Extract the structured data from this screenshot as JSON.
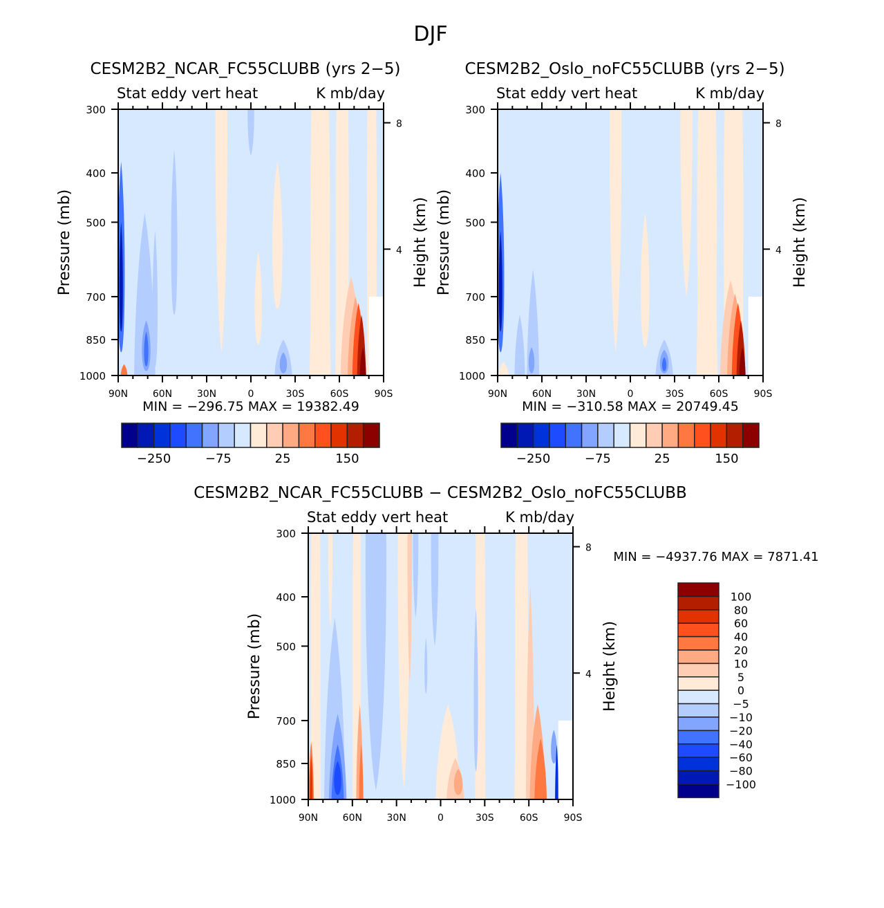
{
  "chart_data": {
    "type": "heatmap",
    "title": "DJF",
    "color_levels_abs": [
      -250,
      -200,
      -150,
      -125,
      -100,
      -75,
      -50,
      -25,
      0,
      25,
      50,
      75,
      100,
      125,
      150,
      175
    ],
    "colors": [
      "#00008c",
      "#0019b4",
      "#0032dc",
      "#1e4bff",
      "#4173ff",
      "#82a5ff",
      "#b4cdff",
      "#d7e9ff",
      "#ffebd7",
      "#ffcdb4",
      "#ffaa82",
      "#ff7841",
      "#ff501e",
      "#e13200",
      "#b41e00",
      "#8c0000"
    ],
    "panels": [
      {
        "id": "ncar",
        "title": "CESM2B2_NCAR_FC55CLUBB (yrs 2−5)",
        "left_string": "Stat eddy vert heat",
        "right_string": "K mb/day",
        "ylabel": "Pressure (mb)",
        "ylabel_right": "Height (km)",
        "min_max": "MIN = −296.75   MAX = 19382.49",
        "colorbar_labels": [
          {
            "after_box": 1,
            "text": "−250"
          },
          {
            "after_box": 5,
            "text": "−75"
          },
          {
            "after_box": 9,
            "text": "25"
          },
          {
            "after_box": 13,
            "text": "150"
          }
        ],
        "background_level": 7,
        "blobs": [
          {
            "lat": 88,
            "p0": 380,
            "p1": 900,
            "w": 2.5,
            "level": 4
          },
          {
            "lat": 88,
            "p0": 500,
            "p1": 820,
            "w": 1.2,
            "level": 1
          },
          {
            "lat": 72,
            "p0": 480,
            "p1": 1000,
            "w": 6,
            "level": 6
          },
          {
            "lat": 71,
            "p0": 780,
            "p1": 980,
            "w": 3,
            "level": 5
          },
          {
            "lat": 71,
            "p0": 820,
            "p1": 960,
            "w": 1.5,
            "level": 4
          },
          {
            "lat": 65,
            "p0": 520,
            "p1": 960,
            "w": 1.8,
            "level": 6
          },
          {
            "lat": 52,
            "p0": 360,
            "p1": 760,
            "w": 2.2,
            "level": 6
          },
          {
            "lat": 20,
            "p0": 300,
            "p1": 900,
            "w": 4,
            "level": 8
          },
          {
            "lat": 0,
            "p0": 300,
            "p1": 370,
            "w": 2.2,
            "level": 6
          },
          {
            "lat": -5,
            "p0": 570,
            "p1": 870,
            "w": 2.5,
            "level": 8
          },
          {
            "lat": -22,
            "p0": 850,
            "p1": 1000,
            "w": 5,
            "level": 6
          },
          {
            "lat": -22,
            "p0": 900,
            "p1": 990,
            "w": 2.5,
            "level": 5
          },
          {
            "lat": -18,
            "p0": 380,
            "p1": 740,
            "w": 3.5,
            "level": 8
          },
          {
            "lat": -47,
            "p0": 300,
            "p1": 1000,
            "w": 6,
            "level": 8
          },
          {
            "lat": -62,
            "p0": 300,
            "p1": 1000,
            "w": 4,
            "level": 8
          },
          {
            "lat": -82,
            "p0": 300,
            "p1": 1000,
            "w": 3,
            "level": 8
          },
          {
            "lat": -68,
            "p0": 640,
            "p1": 1000,
            "w": 6,
            "level": 9
          },
          {
            "lat": -71,
            "p0": 700,
            "p1": 1000,
            "w": 4.5,
            "level": 10
          },
          {
            "lat": -73,
            "p0": 720,
            "p1": 1000,
            "w": 3.5,
            "level": 12
          },
          {
            "lat": -75,
            "p0": 760,
            "p1": 1000,
            "w": 2.5,
            "level": 14
          },
          {
            "lat": -76,
            "p0": 880,
            "p1": 1000,
            "w": 1.8,
            "level": 15
          },
          {
            "lat": 86,
            "p0": 950,
            "p1": 1000,
            "w": 2,
            "level": 11
          }
        ]
      },
      {
        "id": "oslo",
        "title": "CESM2B2_Oslo_noFC55CLUBB (yrs 2−5)",
        "left_string": "Stat eddy vert heat",
        "right_string": "K mb/day",
        "ylabel": "Pressure (mb)",
        "ylabel_right": "Height (km)",
        "min_max": "MIN = −310.58   MAX = 20749.45",
        "colorbar_labels": [
          {
            "after_box": 1,
            "text": "−250"
          },
          {
            "after_box": 5,
            "text": "−75"
          },
          {
            "after_box": 9,
            "text": "25"
          },
          {
            "after_box": 13,
            "text": "150"
          }
        ],
        "background_level": 7,
        "blobs": [
          {
            "lat": 88,
            "p0": 400,
            "p1": 900,
            "w": 2.5,
            "level": 4
          },
          {
            "lat": 88,
            "p0": 520,
            "p1": 820,
            "w": 1.2,
            "level": 1
          },
          {
            "lat": 75,
            "p0": 760,
            "p1": 1000,
            "w": 3,
            "level": 6
          },
          {
            "lat": 66,
            "p0": 620,
            "p1": 1000,
            "w": 3.5,
            "level": 6
          },
          {
            "lat": 67,
            "p0": 880,
            "p1": 990,
            "w": 2,
            "level": 5
          },
          {
            "lat": 86,
            "p0": 940,
            "p1": 1000,
            "w": 3,
            "level": 8
          },
          {
            "lat": 10,
            "p0": 300,
            "p1": 900,
            "w": 4,
            "level": 8
          },
          {
            "lat": -10,
            "p0": 480,
            "p1": 880,
            "w": 3,
            "level": 8
          },
          {
            "lat": -23,
            "p0": 850,
            "p1": 1000,
            "w": 5,
            "level": 6
          },
          {
            "lat": -23,
            "p0": 890,
            "p1": 990,
            "w": 3,
            "level": 5
          },
          {
            "lat": -23,
            "p0": 920,
            "p1": 980,
            "w": 1.5,
            "level": 4
          },
          {
            "lat": -38,
            "p0": 300,
            "p1": 700,
            "w": 4,
            "level": 8
          },
          {
            "lat": -52,
            "p0": 300,
            "p1": 1000,
            "w": 6,
            "level": 8
          },
          {
            "lat": -70,
            "p0": 300,
            "p1": 1000,
            "w": 6,
            "level": 8
          },
          {
            "lat": -68,
            "p0": 650,
            "p1": 1000,
            "w": 6,
            "level": 9
          },
          {
            "lat": -71,
            "p0": 690,
            "p1": 1000,
            "w": 4.5,
            "level": 10
          },
          {
            "lat": -73,
            "p0": 720,
            "p1": 1000,
            "w": 3.5,
            "level": 12
          },
          {
            "lat": -75,
            "p0": 780,
            "p1": 1000,
            "w": 2.5,
            "level": 14
          },
          {
            "lat": -76,
            "p0": 880,
            "p1": 1000,
            "w": 1.8,
            "level": 15
          }
        ]
      },
      {
        "id": "diff",
        "title": "CESM2B2_NCAR_FC55CLUBB − CESM2B2_Oslo_noFC55CLUBB",
        "left_string": "Stat eddy vert heat",
        "right_string": "K mb/day",
        "ylabel": "Pressure (mb)",
        "ylabel_right": "Height (km)",
        "min_max": "MIN = −4937.76   MAX = 7871.41",
        "colorbar_levels": [
          -100,
          -80,
          -60,
          -40,
          -20,
          -10,
          -5,
          0,
          5,
          10,
          20,
          40,
          60,
          80,
          100
        ],
        "background_level": 7,
        "blobs": [
          {
            "lat": 85,
            "p0": 300,
            "p1": 1000,
            "w": 3,
            "level": 8
          },
          {
            "lat": 75,
            "p0": 300,
            "p1": 460,
            "w": 1.5,
            "level": 8
          },
          {
            "lat": 72,
            "p0": 440,
            "p1": 1000,
            "w": 6,
            "level": 6
          },
          {
            "lat": 70,
            "p0": 680,
            "p1": 1000,
            "w": 5,
            "level": 5
          },
          {
            "lat": 70,
            "p0": 780,
            "p1": 1000,
            "w": 3.5,
            "level": 4
          },
          {
            "lat": 70,
            "p0": 840,
            "p1": 980,
            "w": 2.5,
            "level": 3
          },
          {
            "lat": 88,
            "p0": 770,
            "p1": 1000,
            "w": 1.5,
            "level": 11
          },
          {
            "lat": 88,
            "p0": 820,
            "p1": 1000,
            "w": 0.8,
            "level": 13
          },
          {
            "lat": 57,
            "p0": 300,
            "p1": 1000,
            "w": 2.5,
            "level": 8
          },
          {
            "lat": 55,
            "p0": 650,
            "p1": 1000,
            "w": 2,
            "level": 10
          },
          {
            "lat": 54,
            "p0": 780,
            "p1": 1000,
            "w": 1.2,
            "level": 11
          },
          {
            "lat": 44,
            "p0": 300,
            "p1": 960,
            "w": 7,
            "level": 6
          },
          {
            "lat": 25,
            "p0": 300,
            "p1": 950,
            "w": 4,
            "level": 8
          },
          {
            "lat": 21,
            "p0": 300,
            "p1": 590,
            "w": 1.5,
            "level": 9
          },
          {
            "lat": 17,
            "p0": 300,
            "p1": 440,
            "w": 1.8,
            "level": 6
          },
          {
            "lat": 4,
            "p0": 300,
            "p1": 500,
            "w": 2.5,
            "level": 6
          },
          {
            "lat": 10,
            "p0": 480,
            "p1": 620,
            "w": 1,
            "level": 6
          },
          {
            "lat": -5,
            "p0": 650,
            "p1": 1000,
            "w": 7,
            "level": 8
          },
          {
            "lat": -10,
            "p0": 830,
            "p1": 1000,
            "w": 5,
            "level": 9
          },
          {
            "lat": -12,
            "p0": 870,
            "p1": 980,
            "w": 3,
            "level": 10
          },
          {
            "lat": -27,
            "p0": 300,
            "p1": 1000,
            "w": 3,
            "level": 8
          },
          {
            "lat": -24,
            "p0": 420,
            "p1": 880,
            "w": 1.5,
            "level": 6
          },
          {
            "lat": -55,
            "p0": 300,
            "p1": 1000,
            "w": 4,
            "level": 8
          },
          {
            "lat": -61,
            "p0": 380,
            "p1": 1000,
            "w": 2.5,
            "level": 9
          },
          {
            "lat": -66,
            "p0": 650,
            "p1": 1000,
            "w": 4.5,
            "level": 10
          },
          {
            "lat": -68,
            "p0": 760,
            "p1": 1000,
            "w": 3.5,
            "level": 11
          },
          {
            "lat": -77,
            "p0": 730,
            "p1": 850,
            "w": 2,
            "level": 5
          },
          {
            "lat": -79,
            "p0": 780,
            "p1": 1000,
            "w": 1,
            "level": 2
          }
        ]
      }
    ],
    "xticks": [
      "90N",
      "60N",
      "30N",
      "0",
      "30S",
      "60S",
      "90S"
    ],
    "yticks_pressure": [
      300,
      400,
      500,
      700,
      850,
      1000
    ],
    "yticks_height_km": [
      8,
      4
    ],
    "ylim_pressure": [
      1000,
      300
    ],
    "xlim_lat": [
      90,
      -90
    ],
    "missing_region": {
      "lat_from": -80,
      "lat_to": -90,
      "p_from": 700,
      "p_to": 1000
    }
  }
}
